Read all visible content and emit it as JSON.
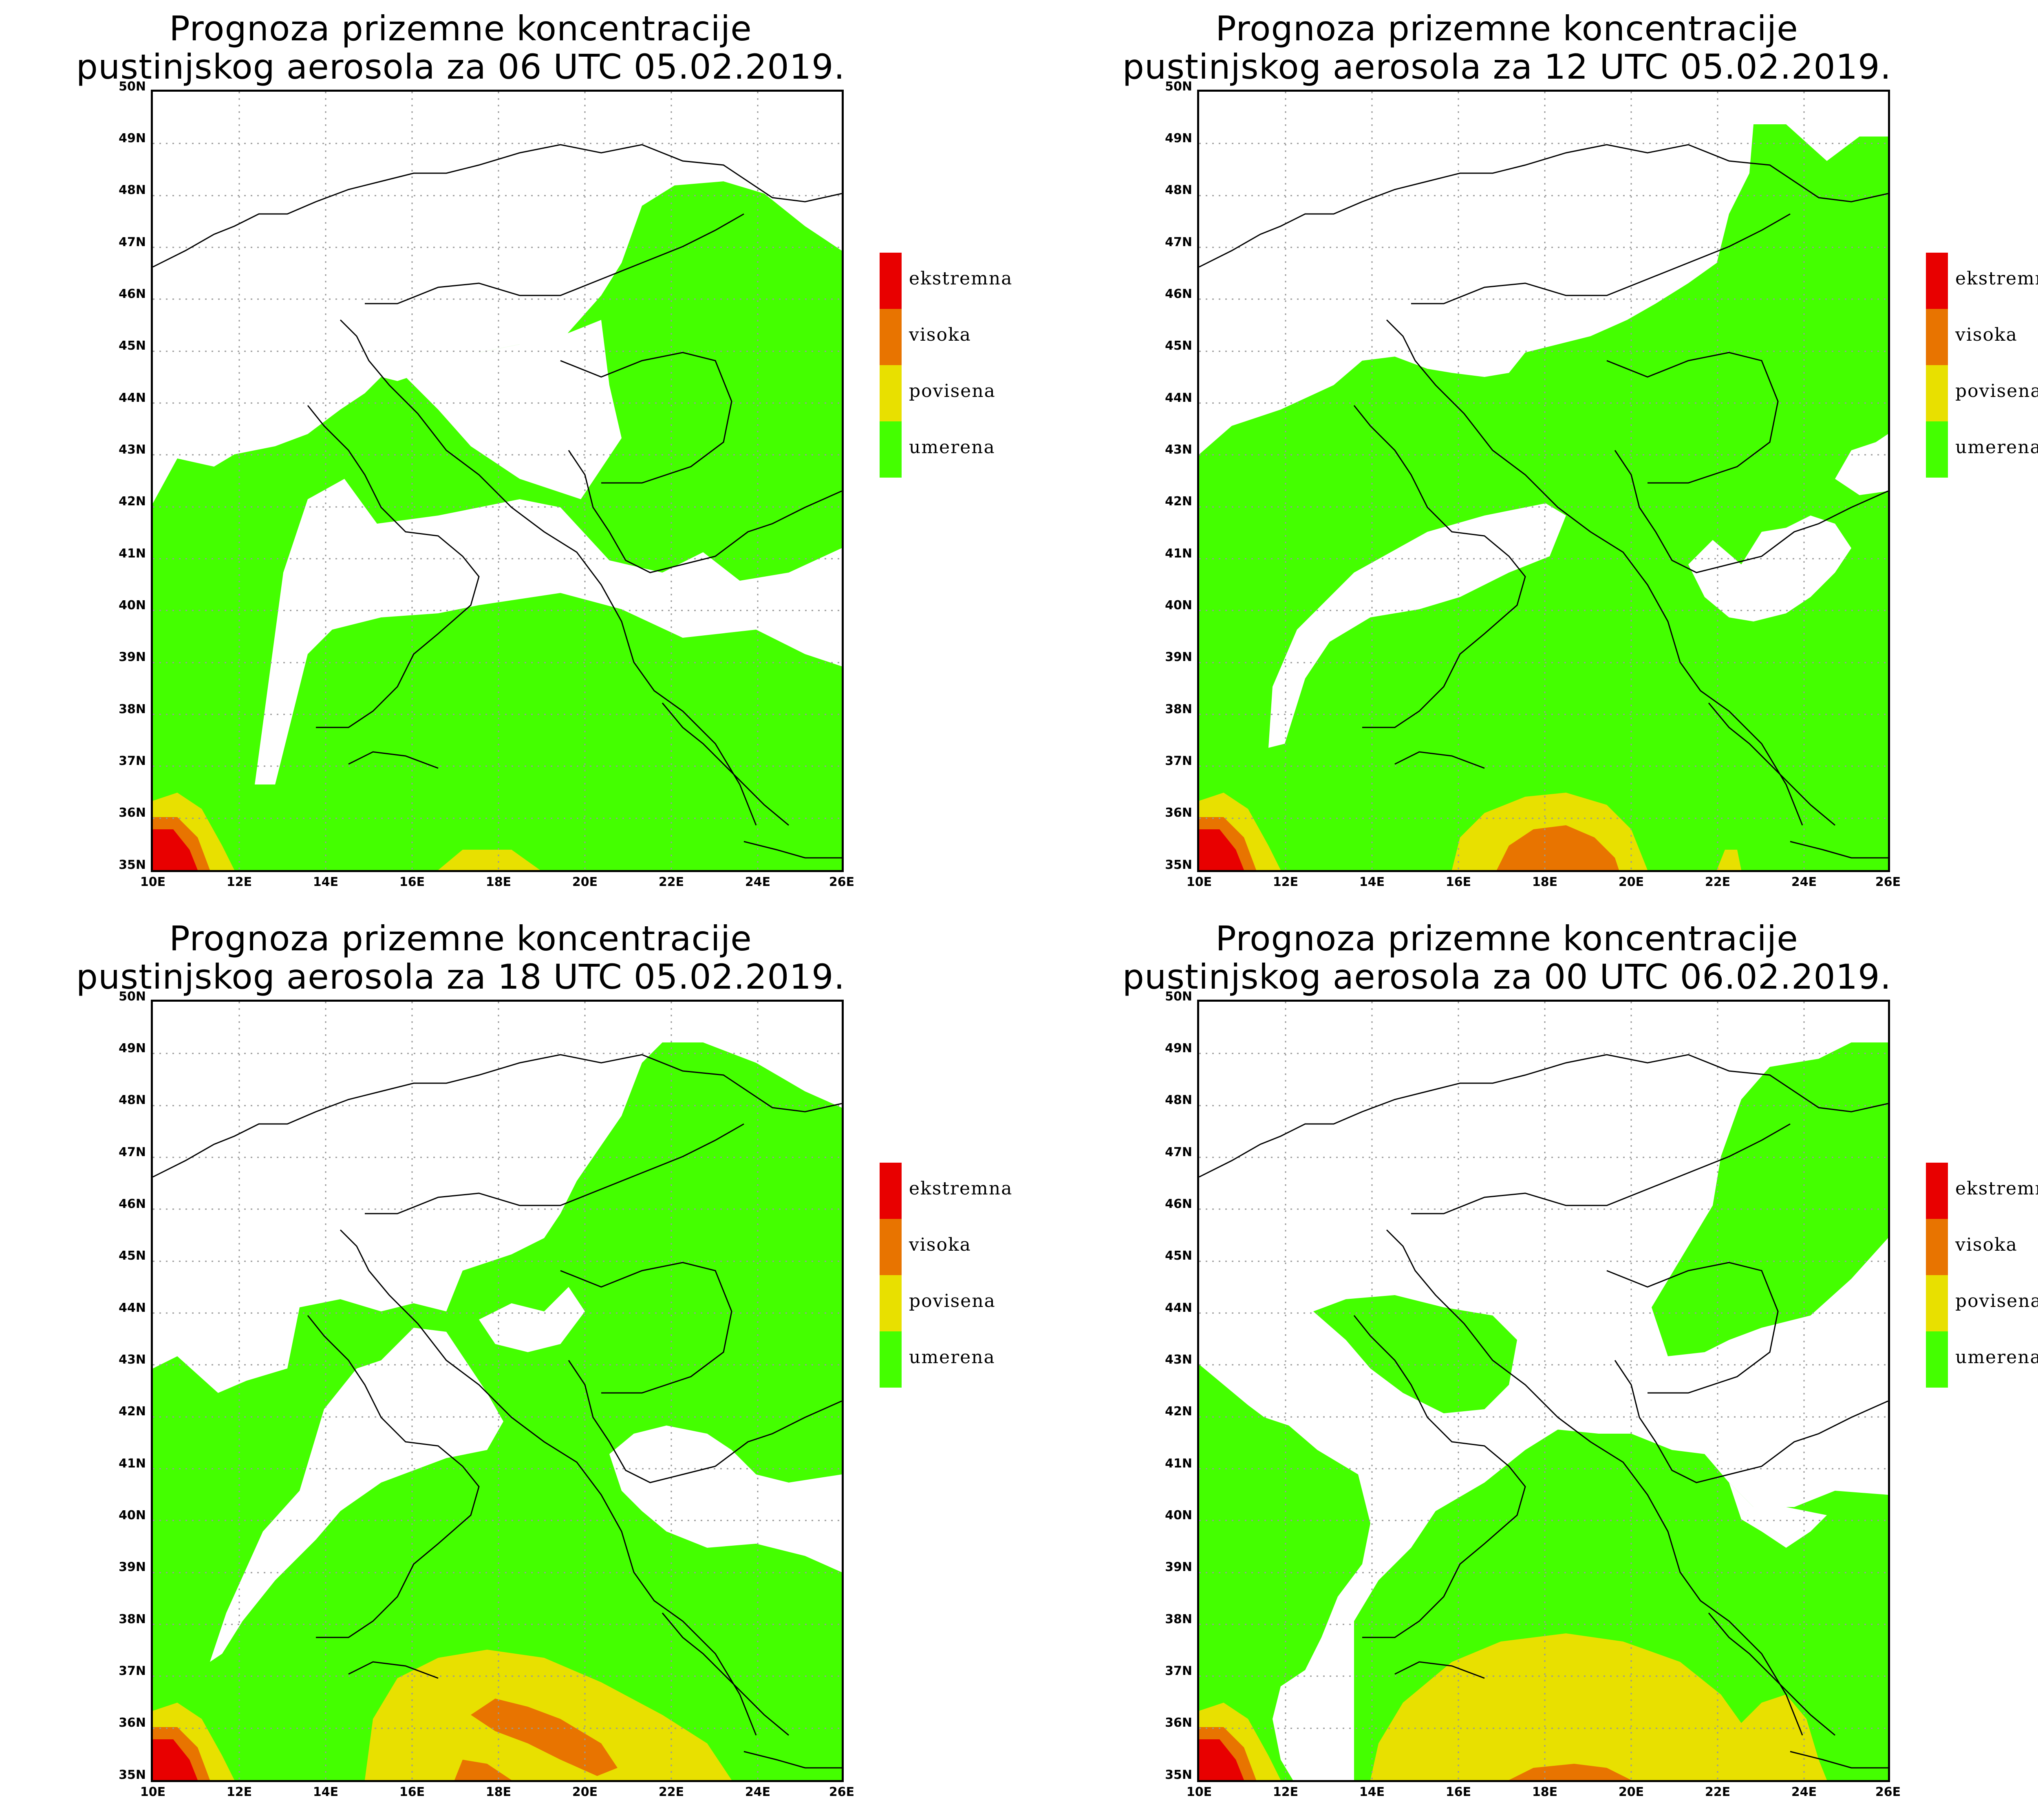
{
  "colors": {
    "umerena": "#44ff00",
    "povisena": "#e8e000",
    "visoka": "#e87400",
    "ekstremna": "#e80000",
    "border": "#000000"
  },
  "legend": [
    {
      "key": "ekstremna",
      "label": "ekstremna"
    },
    {
      "key": "visoka",
      "label": "visoka"
    },
    {
      "key": "povisena",
      "label": "povisena"
    },
    {
      "key": "umerena",
      "label": "umerena"
    }
  ],
  "axes": {
    "lat_labels": [
      "35N",
      "36N",
      "37N",
      "38N",
      "39N",
      "40N",
      "41N",
      "42N",
      "43N",
      "44N",
      "45N",
      "46N",
      "47N",
      "48N",
      "49N",
      "50N"
    ],
    "lon_labels": [
      "10E",
      "12E",
      "14E",
      "16E",
      "18E",
      "20E",
      "22E",
      "24E",
      "26E"
    ],
    "lat_range": [
      35,
      50
    ],
    "lon_range": [
      10,
      26
    ]
  },
  "panels": [
    {
      "title_line1": "Prognoza prizemne koncentracije",
      "title_line2": "pustinjskog aerosola za 06 UTC 05.02.2019."
    },
    {
      "title_line1": "Prognoza prizemne koncentracije",
      "title_line2": "pustinjskog aerosola za 12 UTC 05.02.2019."
    },
    {
      "title_line1": "Prognoza prizemne koncentracije",
      "title_line2": "pustinjskog aerosola za 18 UTC 05.02.2019."
    },
    {
      "title_line1": "Prognoza prizemne koncentracije",
      "title_line2": "pustinjskog aerosola za 00 UTC 06.02.2019."
    }
  ]
}
